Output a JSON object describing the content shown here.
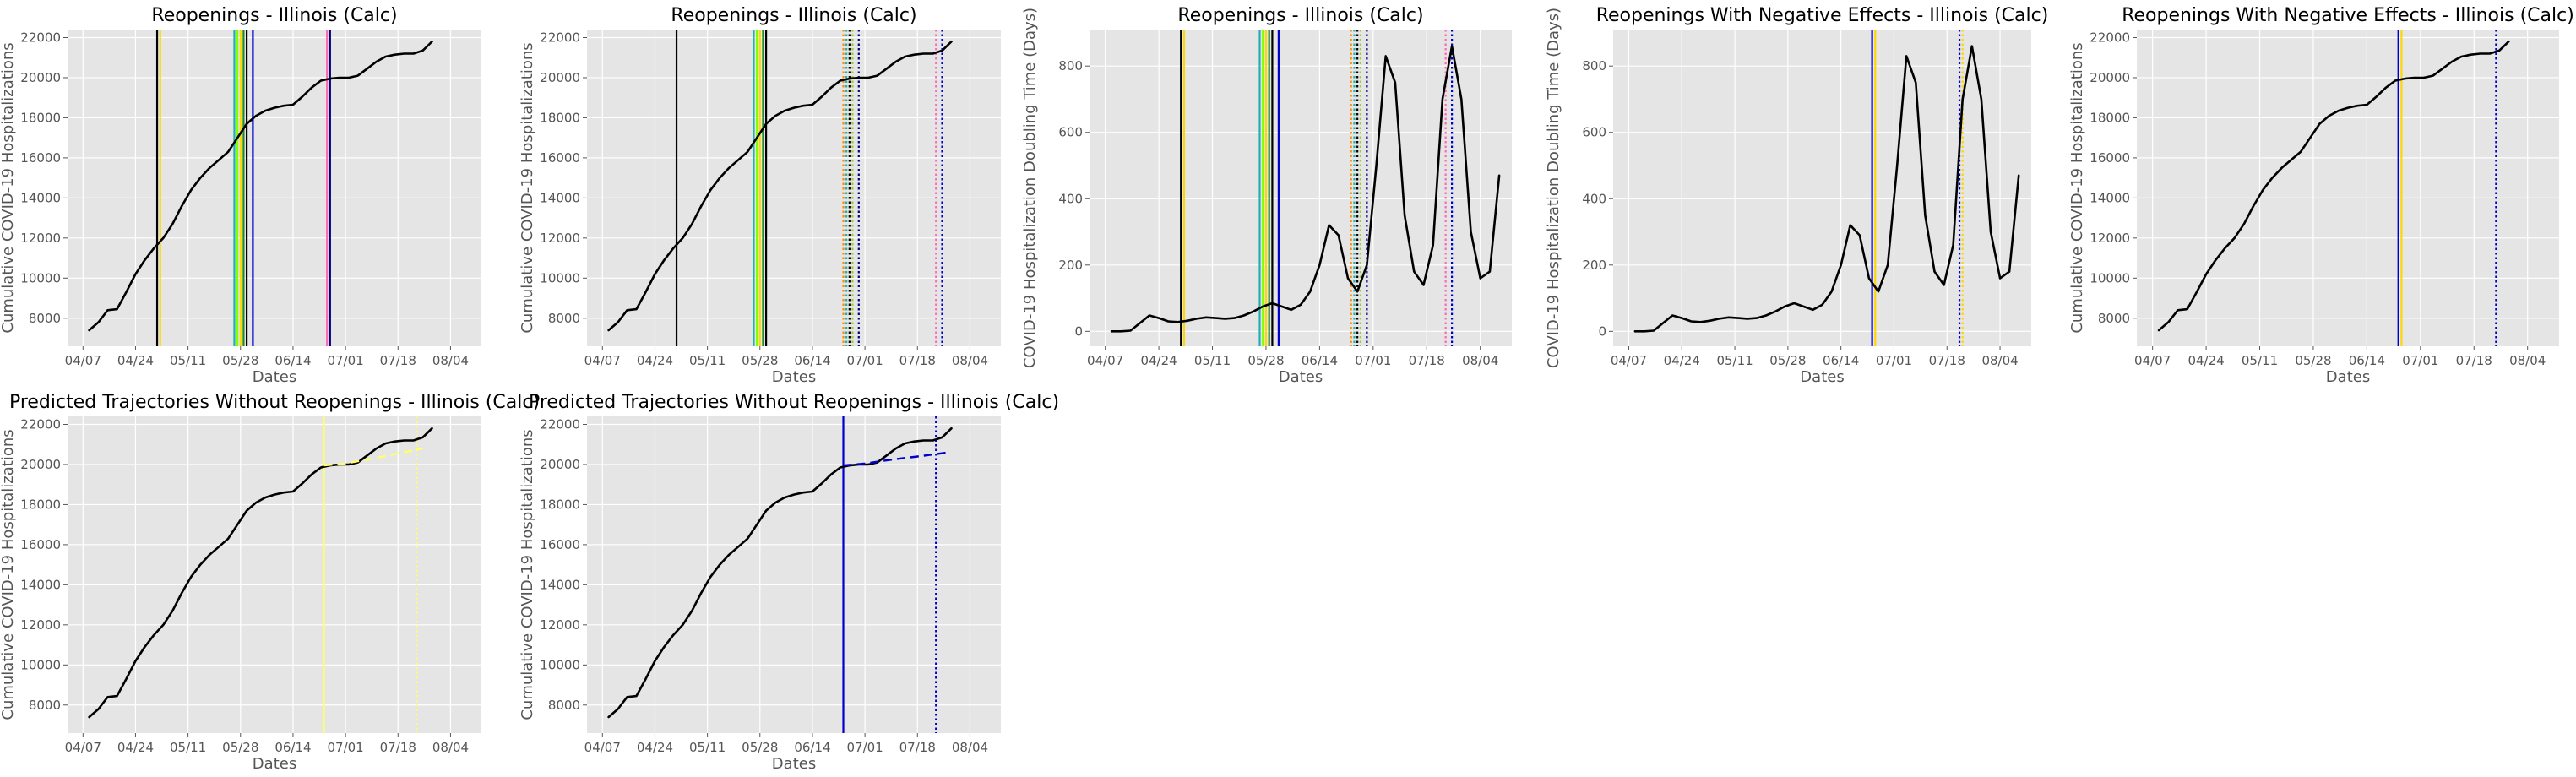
{
  "chart_data": [
    {
      "type": "line",
      "title": "Reopenings - Illinois (Calc)",
      "xlabel": "Dates",
      "ylabel": "Cumulative COVID-19 Hospitalizations",
      "metric": "cum",
      "ylim": [
        6600,
        22400
      ],
      "yticks": [
        8000,
        10000,
        12000,
        14000,
        16000,
        18000,
        20000,
        22000
      ],
      "xticks": [
        "04/07",
        "04/24",
        "05/11",
        "05/28",
        "06/14",
        "07/01",
        "07/18",
        "08/04"
      ],
      "vlines": [
        {
          "date": "05/01",
          "color": "#000000",
          "style": "solid"
        },
        {
          "date": "05/02",
          "color": "#ffd700",
          "style": "solid"
        },
        {
          "date": "05/26",
          "color": "#20b2aa",
          "style": "solid"
        },
        {
          "date": "05/27",
          "color": "#7fff00",
          "style": "solid"
        },
        {
          "date": "05/28",
          "color": "#ffd700",
          "style": "solid"
        },
        {
          "date": "05/29",
          "color": "#228b22",
          "style": "solid"
        },
        {
          "date": "05/30",
          "color": "#000000",
          "style": "solid"
        },
        {
          "date": "06/01",
          "color": "#0000cd",
          "style": "solid"
        },
        {
          "date": "06/25",
          "color": "#ff69b4",
          "style": "solid"
        },
        {
          "date": "06/26",
          "color": "#000080",
          "style": "solid"
        }
      ]
    },
    {
      "type": "line",
      "title": "Reopenings - Illinois (Calc)",
      "xlabel": "Dates",
      "ylabel": "Cumulative COVID-19 Hospitalizations",
      "metric": "cum",
      "ylim": [
        6600,
        22400
      ],
      "yticks": [
        8000,
        10000,
        12000,
        14000,
        16000,
        18000,
        20000,
        22000
      ],
      "xticks": [
        "04/07",
        "04/24",
        "05/11",
        "05/28",
        "06/14",
        "07/01",
        "07/18",
        "08/04"
      ],
      "vlines": [
        {
          "date": "05/01",
          "color": "#000000",
          "style": "solid"
        },
        {
          "date": "05/26",
          "color": "#20b2aa",
          "style": "solid"
        },
        {
          "date": "05/27",
          "color": "#7fff00",
          "style": "solid"
        },
        {
          "date": "05/28",
          "color": "#ffd700",
          "style": "solid"
        },
        {
          "date": "05/29",
          "color": "#228b22",
          "style": "solid"
        },
        {
          "date": "05/30",
          "color": "#000000",
          "style": "solid"
        },
        {
          "date": "06/24",
          "color": "#ff8c00",
          "style": "dotted"
        },
        {
          "date": "06/25",
          "color": "#20b2aa",
          "style": "dotted"
        },
        {
          "date": "06/26",
          "color": "#000000",
          "style": "dotted"
        },
        {
          "date": "06/27",
          "color": "#9acd32",
          "style": "dotted"
        },
        {
          "date": "06/29",
          "color": "#000080",
          "style": "dotted"
        },
        {
          "date": "07/24",
          "color": "#ff69b4",
          "style": "dotted"
        },
        {
          "date": "07/26",
          "color": "#0000cd",
          "style": "dotted"
        }
      ]
    },
    {
      "type": "line",
      "title": "Reopenings - Illinois (Calc)",
      "xlabel": "Dates",
      "ylabel": "COVID-19 Hospitalization Doubling Time (Days)",
      "metric": "dbl",
      "ylim": [
        -45,
        910
      ],
      "yticks": [
        0,
        200,
        400,
        600,
        800
      ],
      "xticks": [
        "04/07",
        "04/24",
        "05/11",
        "05/28",
        "06/14",
        "07/01",
        "07/18",
        "08/04"
      ],
      "vlines": [
        {
          "date": "05/01",
          "color": "#000000",
          "style": "solid"
        },
        {
          "date": "05/02",
          "color": "#ffd700",
          "style": "solid"
        },
        {
          "date": "05/26",
          "color": "#20b2aa",
          "style": "solid"
        },
        {
          "date": "05/27",
          "color": "#7fff00",
          "style": "solid"
        },
        {
          "date": "05/28",
          "color": "#ffd700",
          "style": "solid"
        },
        {
          "date": "05/29",
          "color": "#228b22",
          "style": "solid"
        },
        {
          "date": "05/30",
          "color": "#000000",
          "style": "solid"
        },
        {
          "date": "06/01",
          "color": "#0000cd",
          "style": "solid"
        },
        {
          "date": "06/24",
          "color": "#ff8c00",
          "style": "dotted"
        },
        {
          "date": "06/25",
          "color": "#20b2aa",
          "style": "dotted"
        },
        {
          "date": "06/26",
          "color": "#000000",
          "style": "dotted"
        },
        {
          "date": "06/27",
          "color": "#9acd32",
          "style": "dotted"
        },
        {
          "date": "06/29",
          "color": "#000080",
          "style": "dotted"
        },
        {
          "date": "07/24",
          "color": "#ff69b4",
          "style": "dotted"
        },
        {
          "date": "07/26",
          "color": "#0000cd",
          "style": "dotted"
        }
      ]
    },
    {
      "type": "line",
      "title": "Reopenings With Negative Effects - Illinois (Calc)",
      "xlabel": "Dates",
      "ylabel": "COVID-19 Hospitalization Doubling Time (Days)",
      "metric": "dbl",
      "ylim": [
        -45,
        910
      ],
      "yticks": [
        0,
        200,
        400,
        600,
        800
      ],
      "xticks": [
        "04/07",
        "04/24",
        "05/11",
        "05/28",
        "06/14",
        "07/01",
        "07/18",
        "08/04"
      ],
      "vlines": [
        {
          "date": "06/24",
          "color": "#0000cd",
          "style": "solid"
        },
        {
          "date": "06/25",
          "color": "#ffd700",
          "style": "solid"
        },
        {
          "date": "07/22",
          "color": "#0000cd",
          "style": "dotted"
        },
        {
          "date": "07/23",
          "color": "#ffd700",
          "style": "dotted"
        }
      ]
    },
    {
      "type": "line",
      "title": "Reopenings With Negative Effects - Illinois (Calc)",
      "xlabel": "Dates",
      "ylabel": "Cumulative COVID-19 Hospitalizations",
      "metric": "cum",
      "ylim": [
        6600,
        22400
      ],
      "yticks": [
        8000,
        10000,
        12000,
        14000,
        16000,
        18000,
        20000,
        22000
      ],
      "xticks": [
        "04/07",
        "04/24",
        "05/11",
        "05/28",
        "06/14",
        "07/01",
        "07/18",
        "08/04"
      ],
      "vlines": [
        {
          "date": "06/24",
          "color": "#0000cd",
          "style": "solid"
        },
        {
          "date": "06/25",
          "color": "#ffd700",
          "style": "solid"
        },
        {
          "date": "07/25",
          "color": "#0000cd",
          "style": "dotted"
        }
      ]
    },
    {
      "type": "line",
      "title": "Predicted Trajectories Without Reopenings - Illinois (Calc)",
      "xlabel": "Dates",
      "ylabel": "Cumulative COVID-19 Hospitalizations",
      "metric": "cum",
      "ylim": [
        6600,
        22400
      ],
      "yticks": [
        8000,
        10000,
        12000,
        14000,
        16000,
        18000,
        20000,
        22000
      ],
      "xticks": [
        "04/07",
        "04/24",
        "05/11",
        "05/28",
        "06/14",
        "07/01",
        "07/18",
        "08/04"
      ],
      "vlines": [
        {
          "date": "06/24",
          "color": "#ffff66",
          "style": "solid"
        },
        {
          "date": "07/24",
          "color": "#ffff66",
          "style": "dotted"
        }
      ],
      "prediction": {
        "color": "#ffff66",
        "from": "06/24",
        "x": [
          "06/24",
          "07/01",
          "07/10",
          "07/18",
          "07/26"
        ],
        "values": [
          19950,
          20050,
          20300,
          20550,
          20800
        ]
      }
    },
    {
      "type": "line",
      "title": "Predicted Trajectories Without Reopenings - Illinois (Calc)",
      "xlabel": "Dates",
      "ylabel": "Cumulative COVID-19 Hospitalizations",
      "metric": "cum",
      "ylim": [
        6600,
        22400
      ],
      "yticks": [
        8000,
        10000,
        12000,
        14000,
        16000,
        18000,
        20000,
        22000
      ],
      "xticks": [
        "04/07",
        "04/24",
        "05/11",
        "05/28",
        "06/14",
        "07/01",
        "07/18",
        "08/04"
      ],
      "vlines": [
        {
          "date": "06/24",
          "color": "#0000cd",
          "style": "solid"
        },
        {
          "date": "07/24",
          "color": "#0000cd",
          "style": "dotted"
        }
      ],
      "prediction": {
        "color": "#0000cd",
        "from": "06/24",
        "x": [
          "06/24",
          "07/01",
          "07/10",
          "07/18",
          "07/28"
        ],
        "values": [
          19950,
          20050,
          20250,
          20400,
          20600
        ]
      }
    }
  ],
  "series": {
    "line_color": "#000000",
    "cumulative": {
      "name": "",
      "x": [
        "04/09",
        "04/12",
        "04/15",
        "04/18",
        "04/21",
        "04/24",
        "04/27",
        "04/30",
        "05/03",
        "05/06",
        "05/09",
        "05/12",
        "05/15",
        "05/18",
        "05/21",
        "05/24",
        "05/27",
        "05/30",
        "06/02",
        "06/05",
        "06/08",
        "06/11",
        "06/14",
        "06/17",
        "06/20",
        "06/23",
        "06/26",
        "06/29",
        "07/02",
        "07/05",
        "07/08",
        "07/11",
        "07/14",
        "07/17",
        "07/20",
        "07/23",
        "07/26",
        "07/29"
      ],
      "values": [
        7400,
        7800,
        8400,
        8450,
        9300,
        10200,
        10900,
        11500,
        12000,
        12700,
        13600,
        14400,
        15000,
        15500,
        15900,
        16300,
        17000,
        17700,
        18100,
        18350,
        18500,
        18600,
        18650,
        19050,
        19500,
        19850,
        19950,
        20000,
        20000,
        20100,
        20450,
        20800,
        21050,
        21150,
        21200,
        21200,
        21350,
        21800
      ]
    },
    "doubling_time": {
      "name": "",
      "x": [
        "04/09",
        "04/12",
        "04/15",
        "04/18",
        "04/21",
        "04/24",
        "04/27",
        "04/30",
        "05/03",
        "05/06",
        "05/09",
        "05/12",
        "05/15",
        "05/18",
        "05/21",
        "05/24",
        "05/27",
        "05/30",
        "06/02",
        "06/05",
        "06/08",
        "06/11",
        "06/14",
        "06/17",
        "06/20",
        "06/23",
        "06/26",
        "06/29",
        "07/02",
        "07/05",
        "07/08",
        "07/11",
        "07/14",
        "07/17",
        "07/20",
        "07/23",
        "07/26",
        "07/29",
        "08/01",
        "08/04",
        "08/07",
        "08/10"
      ],
      "values": [
        0,
        0,
        2,
        25,
        48,
        40,
        30,
        28,
        32,
        38,
        42,
        40,
        38,
        40,
        48,
        60,
        75,
        85,
        75,
        65,
        80,
        120,
        200,
        320,
        290,
        160,
        120,
        200,
        500,
        830,
        750,
        350,
        180,
        140,
        260,
        700,
        860,
        700,
        300,
        160,
        180,
        470
      ]
    }
  }
}
